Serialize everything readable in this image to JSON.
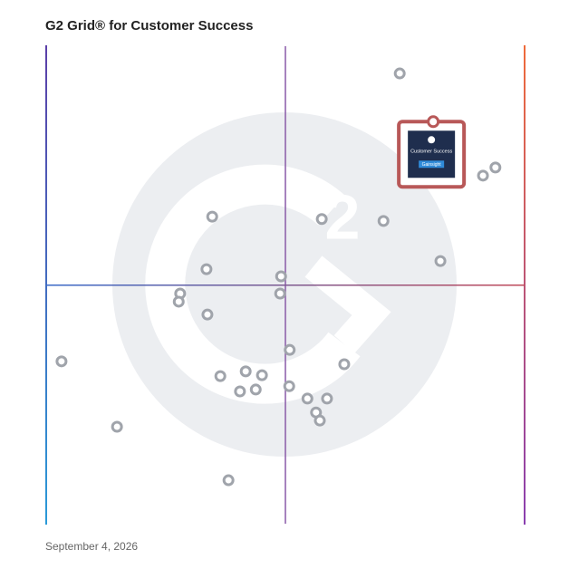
{
  "chart_data": {
    "type": "scatter",
    "title": "G2 Grid® for Customer Success",
    "footer": "September 4, 2026",
    "xlim": [
      0,
      100
    ],
    "ylim": [
      0,
      100
    ],
    "color": "#a0a4ab",
    "x": [
      73.9,
      93.9,
      91.3,
      34.7,
      57.6,
      70.5,
      82.4,
      33.5,
      49.1,
      28.0,
      48.9,
      27.7,
      33.7,
      50.9,
      3.2,
      62.3,
      41.7,
      36.4,
      45.1,
      50.8,
      40.5,
      43.8,
      54.6,
      58.7,
      56.4,
      57.2,
      14.8,
      38.1
    ],
    "y": [
      94.3,
      74.6,
      72.9,
      64.3,
      63.8,
      63.4,
      55.0,
      53.3,
      51.8,
      48.2,
      48.2,
      46.5,
      43.8,
      36.4,
      34.0,
      33.4,
      31.9,
      30.9,
      31.1,
      28.8,
      27.7,
      28.1,
      26.2,
      26.2,
      23.3,
      21.6,
      20.3,
      9.1
    ],
    "highlight": {
      "x": 80.9,
      "y": 84.2,
      "label": "Customer Success",
      "tag": "Gainsight",
      "color": "#b85858"
    }
  }
}
